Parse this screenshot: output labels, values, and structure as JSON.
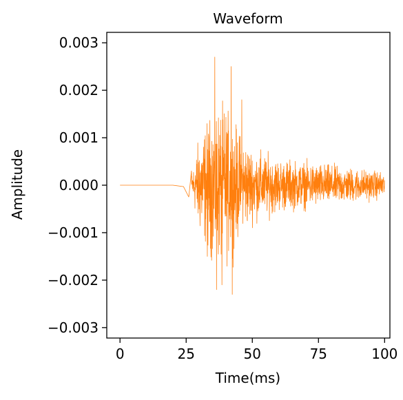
{
  "chart_data": {
    "type": "line",
    "title": "Waveform",
    "xlabel": "Time(ms)",
    "ylabel": "Amplitude",
    "xlim": [
      -5,
      102
    ],
    "ylim": [
      -0.00322,
      0.00322
    ],
    "grid": false,
    "x_ticks": [
      0,
      25,
      50,
      75,
      100
    ],
    "x_tick_labels": [
      "0",
      "25",
      "50",
      "75",
      "100"
    ],
    "y_ticks": [
      0.003,
      0.002,
      0.001,
      0.0,
      -0.001,
      -0.002,
      -0.003
    ],
    "y_tick_labels": [
      "0.003",
      "0.002",
      "0.001",
      "0.000",
      "−0.001",
      "−0.002",
      "−0.003"
    ],
    "series": [
      {
        "color": "#ff7f0e",
        "x_start": 0,
        "x_end": 100,
        "onset_ms": 27,
        "envelope": [
          [
            0,
            0.0
          ],
          [
            20,
            0.0
          ],
          [
            24,
            -3e-05
          ],
          [
            26,
            -0.00025
          ],
          [
            27,
            0.0003
          ],
          [
            30,
            0.0015
          ],
          [
            33,
            0.0019
          ],
          [
            36,
            0.0024
          ],
          [
            40,
            0.0023
          ],
          [
            45,
            0.0016
          ],
          [
            50,
            0.0011
          ],
          [
            60,
            0.0008
          ],
          [
            70,
            0.0007
          ],
          [
            80,
            0.0006
          ],
          [
            90,
            0.0005
          ],
          [
            100,
            0.0004
          ]
        ],
        "peaks": [
          {
            "x": 35.8,
            "y": 0.0027
          },
          {
            "x": 38.5,
            "y": -0.0021
          },
          {
            "x": 42.0,
            "y": 0.0025
          },
          {
            "x": 42.4,
            "y": -0.0023
          },
          {
            "x": 36.5,
            "y": -0.0022
          },
          {
            "x": 33.0,
            "y": -0.0015
          },
          {
            "x": 46.0,
            "y": 0.0018
          }
        ]
      }
    ]
  }
}
